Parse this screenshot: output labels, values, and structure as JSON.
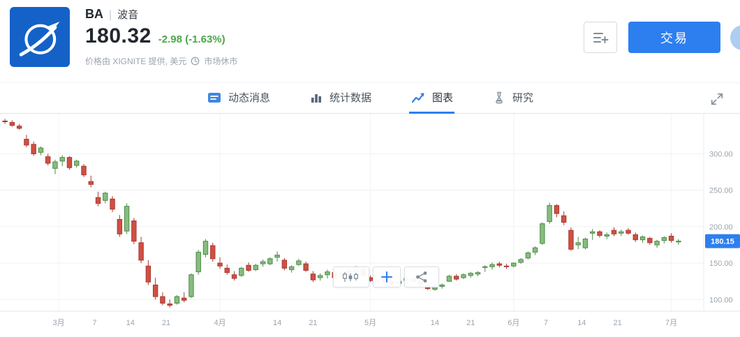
{
  "header": {
    "ticker": "BA",
    "separator": "|",
    "name": "波音",
    "price": "180.32",
    "change": "-2.98 (-1.63%)",
    "change_color": "#4aa748",
    "source_note": "价格由 XIGNITE 提供, 美元",
    "market_status": "市场休市",
    "trade_button": "交易",
    "logo_icon": "boeing-logo",
    "status_icon": "clock-icon",
    "watchlist_icon": "list-plus-icon",
    "accent": "#2d7ff0"
  },
  "tabs": [
    {
      "label": "动态消息",
      "icon": "feed-icon",
      "active": false
    },
    {
      "label": "统计数据",
      "icon": "stats-icon",
      "active": false
    },
    {
      "label": "图表",
      "icon": "chart-icon",
      "active": true
    },
    {
      "label": "研究",
      "icon": "research-icon",
      "active": false
    }
  ],
  "tab_bar": {
    "expand_icon": "expand-icon"
  },
  "chart_tools": [
    {
      "icon": "candlestick-chart-icon"
    },
    {
      "icon": "crosshair-plus-icon"
    },
    {
      "icon": "share-nodes-icon"
    }
  ],
  "chart_data": {
    "type": "candlestick",
    "symbol": "BA",
    "currency": "美元",
    "last_price": 180.15,
    "last_price_label": "180.15",
    "y_ticks": [
      300,
      250,
      200,
      150,
      100
    ],
    "y_tick_labels": [
      "300.00",
      "250.00",
      "200.00",
      "150.00",
      "100.00"
    ],
    "price_range": [
      84,
      355
    ],
    "x_ticks": [
      {
        "label": "3月",
        "i": 7.5
      },
      {
        "label": "7",
        "i": 12.5
      },
      {
        "label": "14",
        "i": 17.5
      },
      {
        "label": "21",
        "i": 22.5
      },
      {
        "label": "4月",
        "i": 30
      },
      {
        "label": "14",
        "i": 38
      },
      {
        "label": "21",
        "i": 43
      },
      {
        "label": "5月",
        "i": 51
      },
      {
        "label": "14",
        "i": 60
      },
      {
        "label": "21",
        "i": 65
      },
      {
        "label": "6月",
        "i": 71
      },
      {
        "label": "7",
        "i": 75.5
      },
      {
        "label": "14",
        "i": 80.5
      },
      {
        "label": "21",
        "i": 85.5
      },
      {
        "label": "7月",
        "i": 93
      }
    ],
    "colors": {
      "up": "#86bd7d",
      "up_stroke": "#4e8c49",
      "down": "#cf5044",
      "down_stroke": "#a93a31",
      "accent": "#2d7ff0",
      "grid": "#edf0f2",
      "axis_text": "#9aa5af"
    },
    "candles": [
      [
        345,
        348,
        341,
        344
      ],
      [
        343,
        346,
        337,
        339
      ],
      [
        338,
        341,
        333,
        335
      ],
      [
        320,
        326,
        309,
        312
      ],
      [
        313,
        317,
        297,
        300
      ],
      [
        302,
        310,
        298,
        308
      ],
      [
        296,
        300,
        284,
        287
      ],
      [
        280,
        292,
        272,
        289
      ],
      [
        290,
        298,
        283,
        295
      ],
      [
        295,
        297,
        278,
        281
      ],
      [
        284,
        292,
        281,
        290
      ],
      [
        283,
        286,
        268,
        271
      ],
      [
        262,
        270,
        254,
        258
      ],
      [
        240,
        248,
        228,
        232
      ],
      [
        236,
        248,
        232,
        246
      ],
      [
        238,
        242,
        220,
        224
      ],
      [
        210,
        216,
        186,
        190
      ],
      [
        194,
        232,
        190,
        228
      ],
      [
        208,
        212,
        176,
        180
      ],
      [
        178,
        186,
        150,
        154
      ],
      [
        146,
        154,
        120,
        124
      ],
      [
        120,
        130,
        100,
        104
      ],
      [
        104,
        110,
        92,
        95
      ],
      [
        94,
        100,
        89,
        92
      ],
      [
        95,
        106,
        93,
        104
      ],
      [
        102,
        110,
        96,
        99
      ],
      [
        104,
        136,
        102,
        134
      ],
      [
        138,
        168,
        134,
        165
      ],
      [
        162,
        183,
        158,
        180
      ],
      [
        174,
        178,
        152,
        156
      ],
      [
        150,
        158,
        142,
        146
      ],
      [
        143,
        148,
        134,
        137
      ],
      [
        134,
        139,
        126,
        129
      ],
      [
        133,
        145,
        131,
        143
      ],
      [
        147,
        151,
        138,
        140
      ],
      [
        141,
        149,
        139,
        147
      ],
      [
        149,
        155,
        145,
        152
      ],
      [
        149,
        158,
        147,
        156
      ],
      [
        158,
        166,
        152,
        161
      ],
      [
        154,
        157,
        140,
        143
      ],
      [
        141,
        147,
        137,
        145
      ],
      [
        148,
        156,
        146,
        153
      ],
      [
        149,
        152,
        138,
        140
      ],
      [
        135,
        139,
        124,
        127
      ],
      [
        130,
        136,
        126,
        133
      ],
      [
        134,
        141,
        129,
        138
      ],
      [
        137,
        140,
        127,
        130
      ],
      [
        132,
        138,
        129,
        136
      ],
      [
        139,
        143,
        131,
        134
      ],
      [
        138,
        146,
        136,
        144
      ],
      [
        142,
        145,
        131,
        133
      ],
      [
        130,
        133,
        124,
        126
      ],
      [
        124,
        129,
        121,
        127
      ],
      [
        128,
        131,
        123,
        125
      ],
      [
        125,
        128,
        119,
        121
      ],
      [
        122,
        127,
        120,
        125
      ],
      [
        126,
        131,
        124,
        129
      ],
      [
        128,
        131,
        123,
        125
      ],
      [
        126,
        128,
        118,
        120
      ],
      [
        119,
        122,
        113,
        115
      ],
      [
        114,
        121,
        112,
        119
      ],
      [
        118,
        122,
        115,
        120
      ],
      [
        125,
        134,
        124,
        132
      ],
      [
        132,
        135,
        126,
        128
      ],
      [
        130,
        136,
        128,
        134
      ],
      [
        133,
        138,
        130,
        136
      ],
      [
        135,
        139,
        132,
        137
      ],
      [
        144,
        147,
        138,
        145
      ],
      [
        145,
        151,
        141,
        148
      ],
      [
        149,
        152,
        144,
        147
      ],
      [
        146,
        149,
        142,
        145
      ],
      [
        146,
        151,
        144,
        150
      ],
      [
        151,
        157,
        149,
        155
      ],
      [
        157,
        166,
        155,
        164
      ],
      [
        165,
        173,
        161,
        171
      ],
      [
        177,
        206,
        175,
        204
      ],
      [
        207,
        233,
        204,
        229
      ],
      [
        229,
        231,
        213,
        218
      ],
      [
        215,
        221,
        202,
        206
      ],
      [
        195,
        199,
        167,
        169
      ],
      [
        175,
        186,
        169,
        178
      ],
      [
        171,
        185,
        169,
        183
      ],
      [
        191,
        197,
        182,
        193
      ],
      [
        193,
        195,
        185,
        188
      ],
      [
        187,
        192,
        183,
        189
      ],
      [
        195,
        199,
        187,
        190
      ],
      [
        191,
        196,
        187,
        193
      ],
      [
        195,
        198,
        189,
        191
      ],
      [
        189,
        192,
        179,
        182
      ],
      [
        182,
        188,
        178,
        186
      ],
      [
        184,
        186,
        175,
        178
      ],
      [
        175,
        182,
        171,
        180
      ],
      [
        181,
        187,
        177,
        185
      ],
      [
        187,
        191,
        178,
        181
      ],
      [
        179,
        183,
        175,
        180.15
      ]
    ]
  }
}
